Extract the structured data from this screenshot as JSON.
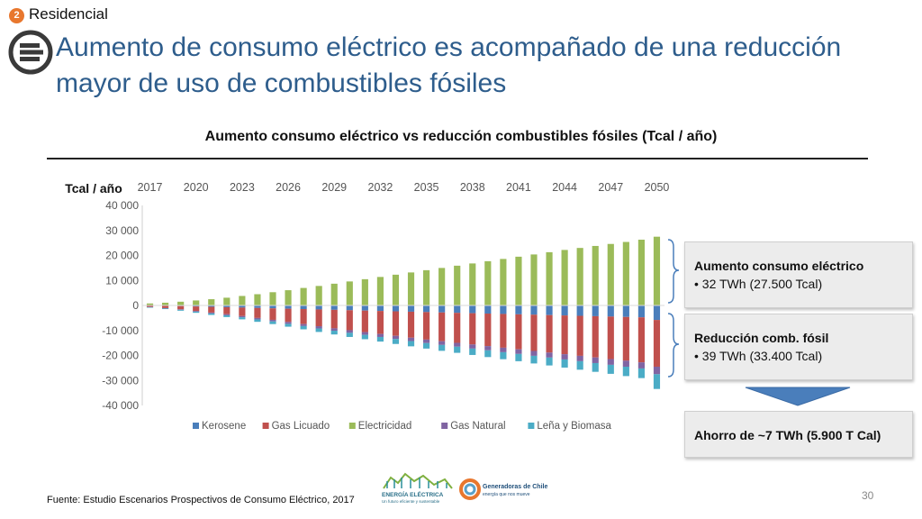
{
  "header": {
    "section_number": "2",
    "section_label": "Residencial",
    "title": "Aumento de consumo eléctrico es acompañado de una reducción mayor de uso de combustibles fósiles"
  },
  "chart_title": "Aumento consumo eléctrico vs reducción combustibles fósiles (Tcal / año)",
  "chart_data": {
    "type": "bar",
    "stacked": true,
    "title": "Aumento consumo eléctrico vs reducción combustibles fósiles (Tcal / año)",
    "ylabel": "Tcal / año",
    "xlabel": "",
    "ylim": [
      -40000,
      40000
    ],
    "yticks": [
      40000,
      30000,
      20000,
      10000,
      0,
      -10000,
      -20000,
      -30000,
      -40000
    ],
    "ytick_labels": [
      "40 000",
      "30 000",
      "20 000",
      "10 000",
      "0",
      "-10 000",
      "-20 000",
      "-30 000",
      "-40 000"
    ],
    "xaxis_position": "top",
    "legend_position": "bottom",
    "categories": [
      "2017",
      "2018",
      "2019",
      "2020",
      "2021",
      "2022",
      "2023",
      "2024",
      "2025",
      "2026",
      "2027",
      "2028",
      "2029",
      "2030",
      "2031",
      "2032",
      "2033",
      "2034",
      "2035",
      "2036",
      "2037",
      "2038",
      "2039",
      "2040",
      "2041",
      "2042",
      "2043",
      "2044",
      "2045",
      "2046",
      "2047",
      "2048",
      "2049",
      "2050"
    ],
    "xtick_labels": [
      "2017",
      "2020",
      "2023",
      "2026",
      "2029",
      "2032",
      "2035",
      "2038",
      "2041",
      "2044",
      "2047",
      "2050"
    ],
    "series": [
      {
        "name": "Kerosene",
        "color": "#4a7ebb",
        "values": [
          -100,
          -150,
          -250,
          -400,
          -550,
          -700,
          -850,
          -1000,
          -1150,
          -1300,
          -1450,
          -1600,
          -1750,
          -1900,
          -2050,
          -2200,
          -2350,
          -2500,
          -2650,
          -2800,
          -2950,
          -3100,
          -3250,
          -3400,
          -3550,
          -3700,
          -3850,
          -4000,
          -4150,
          -4300,
          -4450,
          -4600,
          -4750,
          -5800
        ]
      },
      {
        "name": "Gas Licuado",
        "color": "#c0504d",
        "values": [
          -500,
          -900,
          -1300,
          -1800,
          -2300,
          -2800,
          -3400,
          -4000,
          -4600,
          -5300,
          -6000,
          -6700,
          -7400,
          -8000,
          -8600,
          -9200,
          -9800,
          -10400,
          -11000,
          -11500,
          -12000,
          -12500,
          -13000,
          -13500,
          -14000,
          -14500,
          -15000,
          -15500,
          -16000,
          -16500,
          -17000,
          -17500,
          -18000,
          -18700
        ]
      },
      {
        "name": "Electricidad",
        "color": "#9bbb59",
        "values": [
          800,
          1100,
          1500,
          2000,
          2500,
          3100,
          3800,
          4500,
          5300,
          6100,
          7000,
          7800,
          8700,
          9600,
          10500,
          11400,
          12300,
          13200,
          14100,
          15000,
          15900,
          16800,
          17700,
          18600,
          19500,
          20400,
          21300,
          22200,
          23000,
          23800,
          24600,
          25400,
          26300,
          27500
        ]
      },
      {
        "name": "Gas Natural",
        "color": "#8064a2",
        "values": [
          -100,
          -150,
          -200,
          -300,
          -350,
          -450,
          -500,
          -600,
          -650,
          -750,
          -800,
          -900,
          -950,
          -1050,
          -1100,
          -1200,
          -1250,
          -1350,
          -1400,
          -1500,
          -1550,
          -1650,
          -1700,
          -1800,
          -1850,
          -1950,
          -2000,
          -2100,
          -2150,
          -2250,
          -2300,
          -2400,
          -2450,
          -3000
        ]
      },
      {
        "name": "Leña y Biomasa",
        "color": "#4bacc6",
        "values": [
          -150,
          -250,
          -350,
          -450,
          -600,
          -700,
          -800,
          -950,
          -1050,
          -1150,
          -1300,
          -1400,
          -1500,
          -1650,
          -1750,
          -1850,
          -2000,
          -2100,
          -2200,
          -2350,
          -2450,
          -2550,
          -2700,
          -2800,
          -2900,
          -3050,
          -3150,
          -3250,
          -3400,
          -3500,
          -3600,
          -3750,
          -3850,
          -5900
        ]
      }
    ]
  },
  "side_boxes": {
    "increase": {
      "title": "Aumento consumo eléctrico",
      "bullet": "•  32 TWh (27.500 Tcal)"
    },
    "reduction": {
      "title": "Reducción comb. fósil",
      "bullet": "•  39 TWh (33.400 Tcal)"
    },
    "savings": {
      "text": "Ahorro de ~7 TWh (5.900 T Cal)"
    }
  },
  "footer": {
    "source": "Fuente: Estudio Escenarios Prospectivos de Consumo Eléctrico, 2017",
    "page_number": "30",
    "logo_left_title": "ENERGÍA ELÉCTRICA",
    "logo_left_sub": "Un futuro eficiente y sustentable",
    "logo_right_title": "Generadoras de Chile",
    "logo_right_sub": "energía que nos mueve"
  },
  "colors": {
    "title_blue": "#2e5d8c",
    "badge_orange": "#e8772e",
    "arrow_blue": "#4a7ebb",
    "bracket_blue": "#4a7ebb"
  }
}
